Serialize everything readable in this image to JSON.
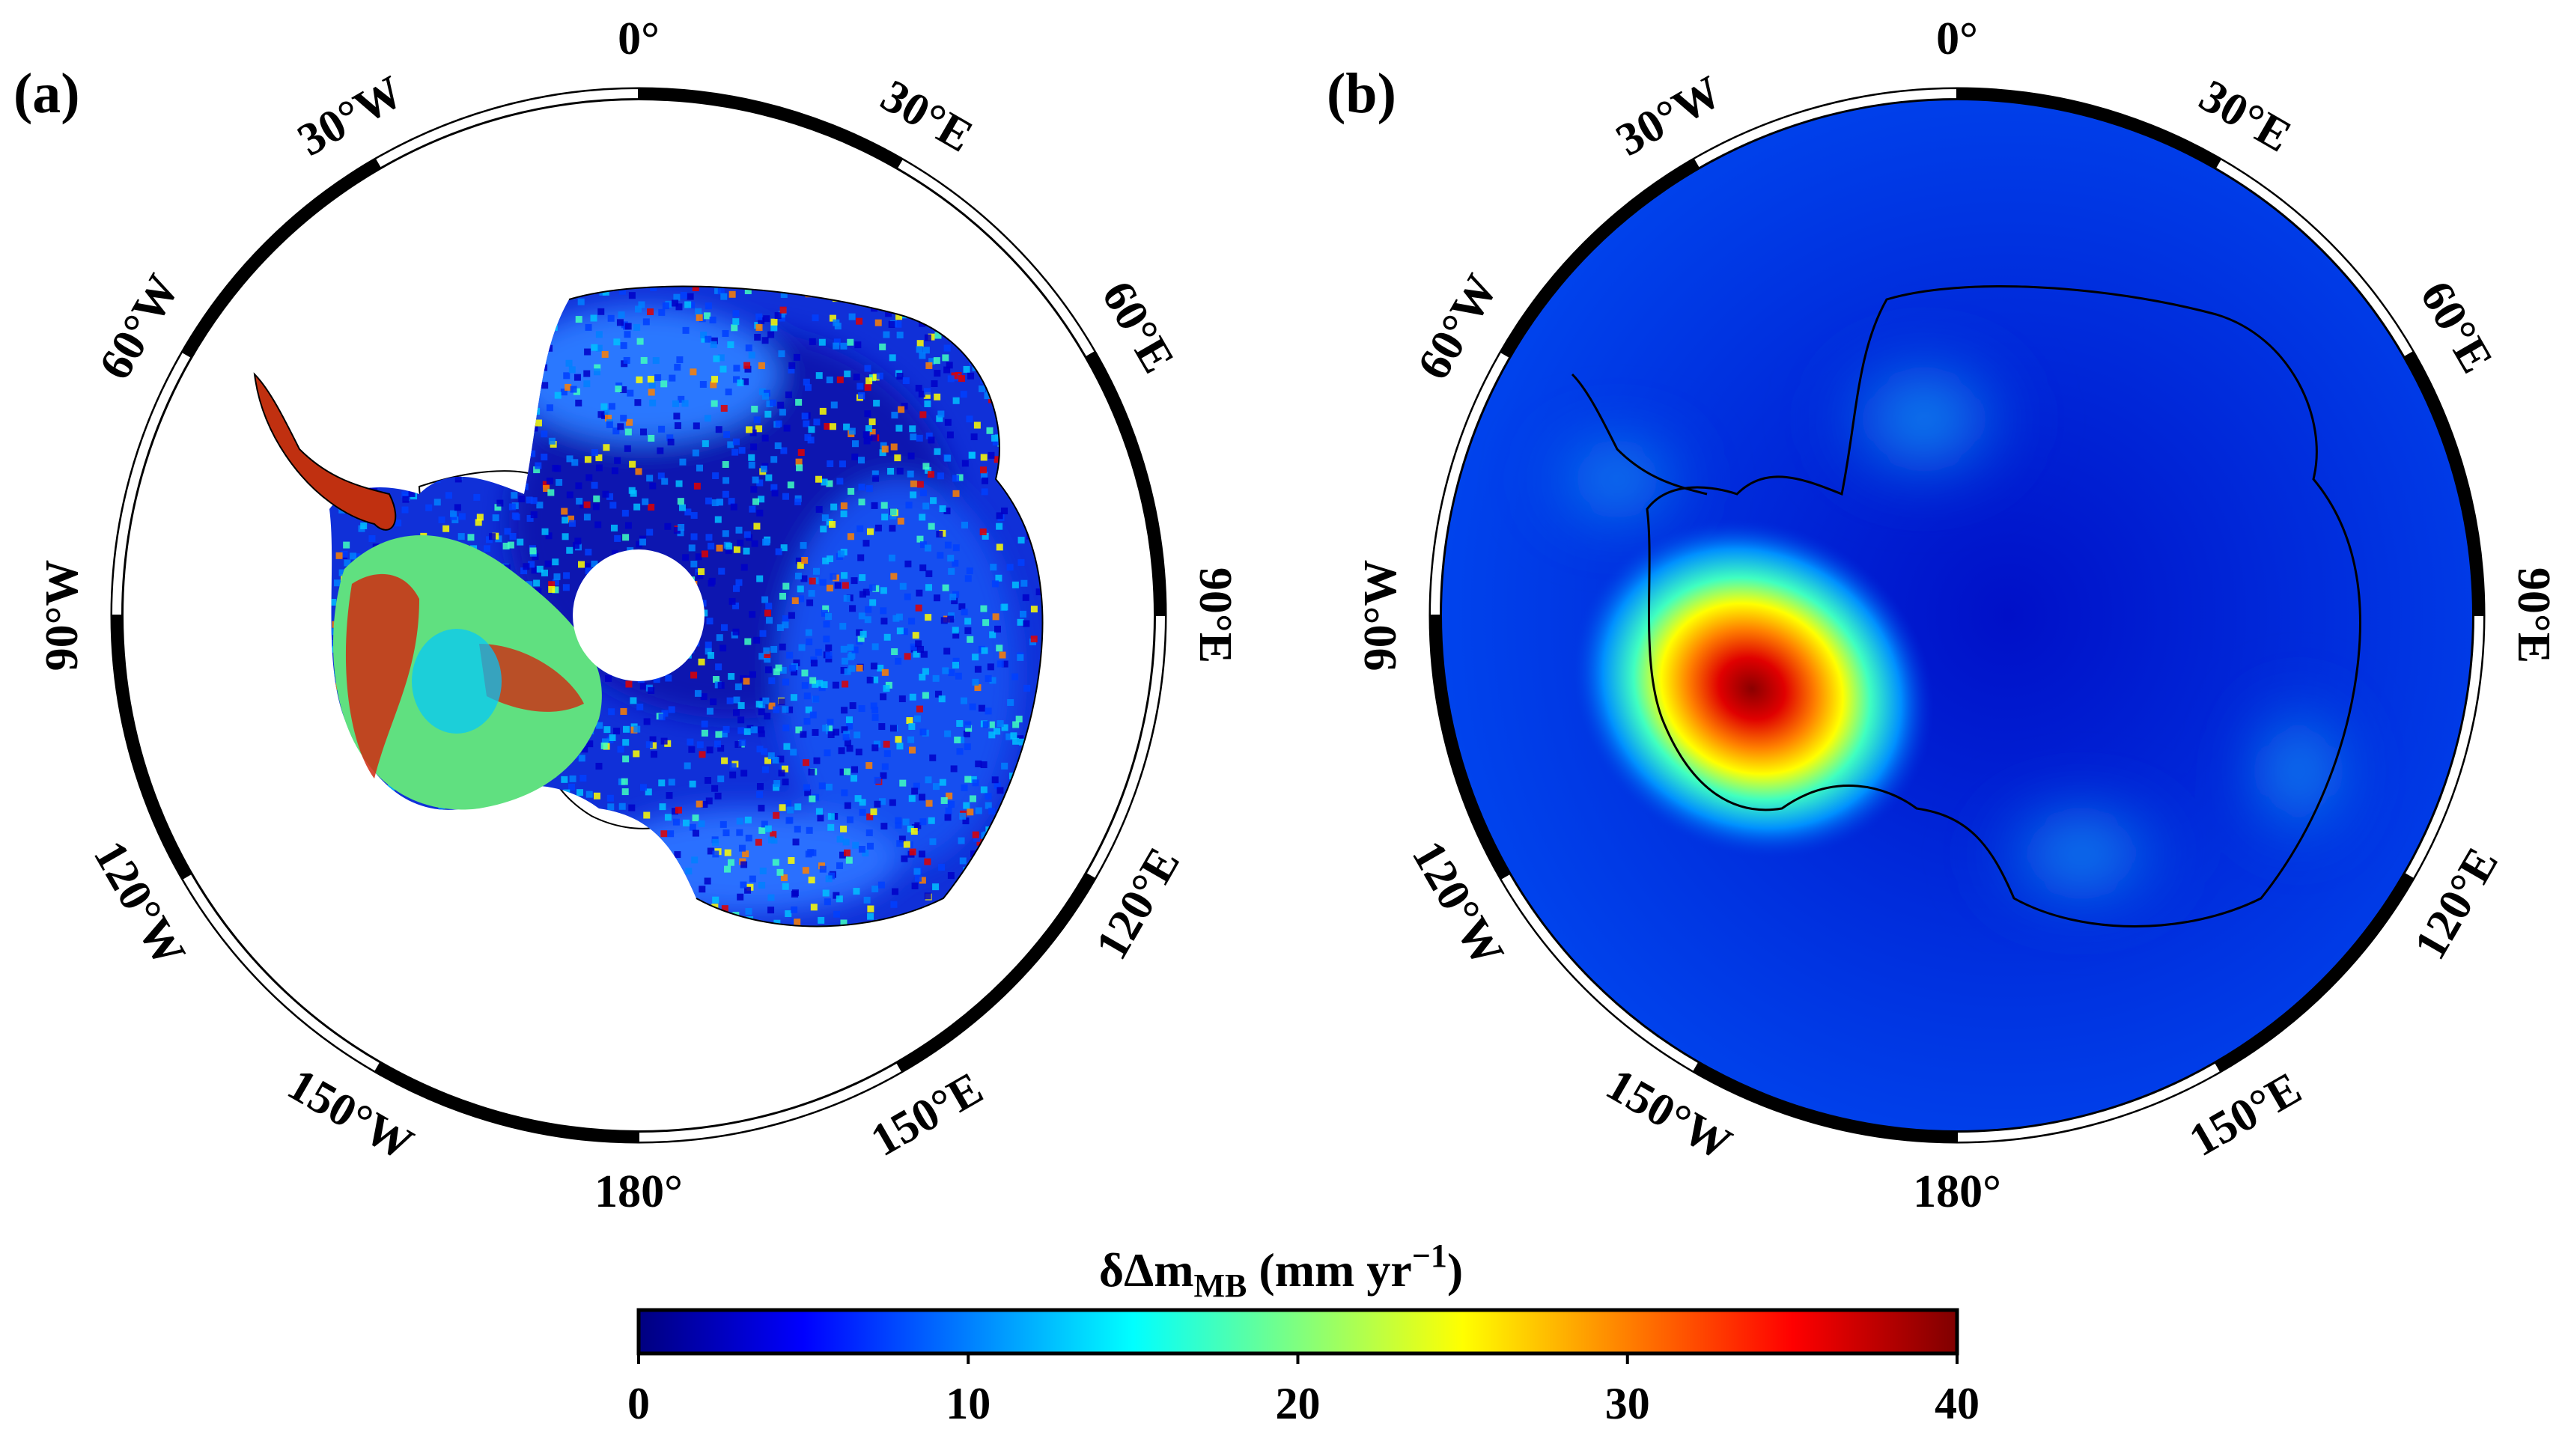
{
  "figure": {
    "panels": [
      {
        "id": "a",
        "label": "(a)",
        "longitude_labels": [
          "0°",
          "30°E",
          "60°E",
          "90°E",
          "120°E",
          "150°E",
          "180°",
          "150°W",
          "120°W",
          "90°W",
          "60°W",
          "30°W"
        ]
      },
      {
        "id": "b",
        "label": "(b)",
        "longitude_labels": [
          "0°",
          "30°E",
          "60°E",
          "90°E",
          "120°E",
          "150°E",
          "180°",
          "150°W",
          "120°W",
          "90°W",
          "60°W",
          "30°W"
        ]
      }
    ],
    "colorbar": {
      "title_prefix": "δΔm",
      "title_subscript": "MB",
      "title_suffix": " (mm yr",
      "title_superscript": "−1",
      "title_close": ")",
      "min": 0,
      "max": 40,
      "tick_labels": [
        "0",
        "10",
        "20",
        "30",
        "40"
      ],
      "colors": [
        "#00007f",
        "#0000ff",
        "#007fff",
        "#00ffff",
        "#7fff7f",
        "#ffff00",
        "#ff7f00",
        "#ff0000",
        "#7f0000"
      ]
    }
  },
  "chart_data": {
    "type": "heatmap",
    "projection": "south polar stereographic",
    "variable": "δΔm_MB",
    "units": "mm yr^-1",
    "colorbar_range": [
      0,
      40
    ],
    "colorbar_ticks": [
      0,
      10,
      20,
      30,
      40
    ],
    "longitude_ticks": [
      "0°",
      "30°E",
      "60°E",
      "90°E",
      "120°E",
      "150°E",
      "180°",
      "150°W",
      "120°W",
      "90°W",
      "60°W",
      "30°W"
    ],
    "panels": [
      {
        "label": "(a)",
        "field": "high-resolution, noisy; largest values (~30-40) along Antarctic Peninsula and West Antarctic coast; East Antarctica mostly 0-10"
      },
      {
        "label": "(b)",
        "field": "smoothed; maximum ~40 over West Antarctica (Amundsen Sea sector); background ~3-8"
      }
    ]
  }
}
